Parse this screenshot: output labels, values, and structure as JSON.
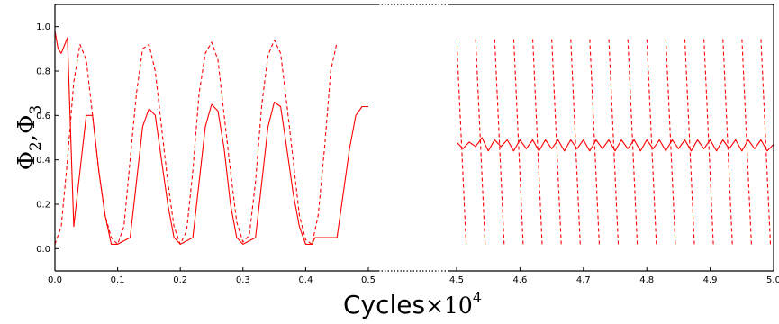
{
  "chart_data": {
    "type": "line",
    "title": "",
    "xlabel": "Cycles",
    "xlabel_multiplier": "×10",
    "xlabel_exponent": "4",
    "ylabel_symbol": "Φ",
    "ylabel_sub_1": "2",
    "ylabel_sub_2": "3",
    "ylabel_comma": ",",
    "x_axis_broken": true,
    "x_break_style": "dotted",
    "grid": false,
    "legend": "none",
    "series_color": "#ff0000",
    "ylim": [
      -0.1,
      1.1
    ],
    "yticks": [
      "0.0",
      "0.2",
      "0.4",
      "0.6",
      "0.8",
      "1.0"
    ],
    "panels": [
      {
        "xlim": [
          0.0,
          0.5
        ],
        "xticks": [
          "0.0",
          "0.1",
          "0.2",
          "0.3",
          "0.4",
          "0.5"
        ],
        "series": [
          {
            "style": "solid",
            "role": "phase 2",
            "x": [
              0.0,
              0.005,
              0.01,
              0.02,
              0.03,
              0.04,
              0.05,
              0.06,
              0.07,
              0.08,
              0.09,
              0.1,
              0.12,
              0.13,
              0.14,
              0.15,
              0.16,
              0.17,
              0.18,
              0.19,
              0.2,
              0.22,
              0.23,
              0.24,
              0.25,
              0.26,
              0.27,
              0.28,
              0.29,
              0.3,
              0.32,
              0.33,
              0.34,
              0.35,
              0.36,
              0.37,
              0.38,
              0.39,
              0.4,
              0.41,
              0.415,
              0.45,
              0.46,
              0.47,
              0.48,
              0.49,
              0.5
            ],
            "y": [
              0.98,
              0.9,
              0.88,
              0.95,
              0.1,
              0.35,
              0.6,
              0.6,
              0.35,
              0.15,
              0.02,
              0.02,
              0.05,
              0.3,
              0.55,
              0.63,
              0.6,
              0.4,
              0.2,
              0.05,
              0.02,
              0.05,
              0.3,
              0.55,
              0.65,
              0.62,
              0.45,
              0.2,
              0.05,
              0.02,
              0.05,
              0.3,
              0.55,
              0.66,
              0.64,
              0.45,
              0.25,
              0.1,
              0.02,
              0.02,
              0.05,
              0.05,
              0.25,
              0.45,
              0.6,
              0.64,
              0.64
            ]
          },
          {
            "style": "dashed",
            "role": "phase 3",
            "x": [
              0.0,
              0.01,
              0.02,
              0.03,
              0.04,
              0.05,
              0.06,
              0.07,
              0.08,
              0.09,
              0.1,
              0.11,
              0.12,
              0.13,
              0.14,
              0.15,
              0.16,
              0.17,
              0.18,
              0.19,
              0.2,
              0.21,
              0.22,
              0.23,
              0.24,
              0.25,
              0.26,
              0.27,
              0.28,
              0.29,
              0.3,
              0.31,
              0.32,
              0.33,
              0.34,
              0.35,
              0.36,
              0.37,
              0.38,
              0.39,
              0.4,
              0.41,
              0.42,
              0.43,
              0.44,
              0.45
            ],
            "y": [
              0.02,
              0.1,
              0.4,
              0.75,
              0.92,
              0.85,
              0.6,
              0.35,
              0.15,
              0.05,
              0.02,
              0.1,
              0.4,
              0.7,
              0.9,
              0.92,
              0.8,
              0.55,
              0.3,
              0.1,
              0.02,
              0.08,
              0.35,
              0.7,
              0.88,
              0.93,
              0.85,
              0.6,
              0.35,
              0.12,
              0.03,
              0.06,
              0.3,
              0.65,
              0.87,
              0.94,
              0.88,
              0.65,
              0.4,
              0.15,
              0.04,
              0.02,
              0.15,
              0.45,
              0.8,
              0.93
            ]
          }
        ]
      },
      {
        "xlim": [
          4.5,
          5.0
        ],
        "xticks": [
          "4.5",
          "4.6",
          "4.7",
          "4.8",
          "4.9",
          "5.0"
        ],
        "series": [
          {
            "style": "solid",
            "role": "phase 2",
            "x": [
              4.5,
              4.51,
              4.52,
              4.53,
              4.54,
              4.55,
              4.56,
              4.57,
              4.58,
              4.59,
              4.6,
              4.61,
              4.62,
              4.63,
              4.64,
              4.65,
              4.66,
              4.67,
              4.68,
              4.69,
              4.7,
              4.71,
              4.72,
              4.73,
              4.74,
              4.75,
              4.76,
              4.77,
              4.78,
              4.79,
              4.8,
              4.81,
              4.82,
              4.83,
              4.84,
              4.85,
              4.86,
              4.87,
              4.88,
              4.89,
              4.9,
              4.91,
              4.92,
              4.93,
              4.94,
              4.95,
              4.96,
              4.97,
              4.98,
              4.99,
              5.0
            ],
            "y": [
              0.48,
              0.45,
              0.48,
              0.46,
              0.5,
              0.44,
              0.49,
              0.46,
              0.49,
              0.44,
              0.49,
              0.45,
              0.49,
              0.44,
              0.49,
              0.45,
              0.49,
              0.44,
              0.49,
              0.45,
              0.49,
              0.44,
              0.49,
              0.45,
              0.49,
              0.44,
              0.49,
              0.45,
              0.49,
              0.44,
              0.49,
              0.45,
              0.49,
              0.44,
              0.49,
              0.45,
              0.49,
              0.44,
              0.49,
              0.45,
              0.49,
              0.44,
              0.49,
              0.45,
              0.49,
              0.44,
              0.49,
              0.45,
              0.49,
              0.44,
              0.47
            ]
          }
        ],
        "dashed_segments": [
          {
            "x": [
              4.515,
              4.5
            ],
            "y": [
              0.02,
              0.95
            ]
          },
          {
            "x": [
              4.545,
              4.53
            ],
            "y": [
              0.02,
              0.95
            ]
          },
          {
            "x": [
              4.575,
              4.56
            ],
            "y": [
              0.02,
              0.95
            ]
          },
          {
            "x": [
              4.605,
              4.59
            ],
            "y": [
              0.02,
              0.95
            ]
          },
          {
            "x": [
              4.635,
              4.62
            ],
            "y": [
              0.02,
              0.95
            ]
          },
          {
            "x": [
              4.665,
              4.65
            ],
            "y": [
              0.02,
              0.95
            ]
          },
          {
            "x": [
              4.695,
              4.68
            ],
            "y": [
              0.02,
              0.95
            ]
          },
          {
            "x": [
              4.725,
              4.71
            ],
            "y": [
              0.02,
              0.95
            ]
          },
          {
            "x": [
              4.755,
              4.74
            ],
            "y": [
              0.02,
              0.95
            ]
          },
          {
            "x": [
              4.785,
              4.77
            ],
            "y": [
              0.02,
              0.95
            ]
          },
          {
            "x": [
              4.815,
              4.8
            ],
            "y": [
              0.02,
              0.95
            ]
          },
          {
            "x": [
              4.845,
              4.83
            ],
            "y": [
              0.02,
              0.95
            ]
          },
          {
            "x": [
              4.875,
              4.86
            ],
            "y": [
              0.02,
              0.95
            ]
          },
          {
            "x": [
              4.905,
              4.89
            ],
            "y": [
              0.02,
              0.95
            ]
          },
          {
            "x": [
              4.935,
              4.92
            ],
            "y": [
              0.02,
              0.95
            ]
          },
          {
            "x": [
              4.965,
              4.95
            ],
            "y": [
              0.02,
              0.95
            ]
          },
          {
            "x": [
              4.995,
              4.98
            ],
            "y": [
              0.02,
              0.95
            ]
          }
        ]
      }
    ]
  }
}
